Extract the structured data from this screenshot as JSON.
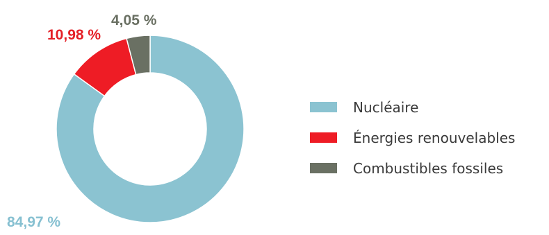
{
  "chart_data": {
    "type": "pie",
    "donut": true,
    "categories": [
      "Nucléaire",
      "Énergies renouvelables",
      "Combustibles fossiles"
    ],
    "values": [
      84.97,
      10.98,
      4.05
    ],
    "value_labels": [
      "84,97 %",
      "10,98 %",
      "4,05 %"
    ],
    "label_colors": [
      "#86c0d1",
      "#e41f26",
      "#6a7063"
    ],
    "colors": [
      "#8bc3d1",
      "#ee1c25",
      "#6a7063"
    ],
    "legend_placement": "right",
    "title": ""
  }
}
